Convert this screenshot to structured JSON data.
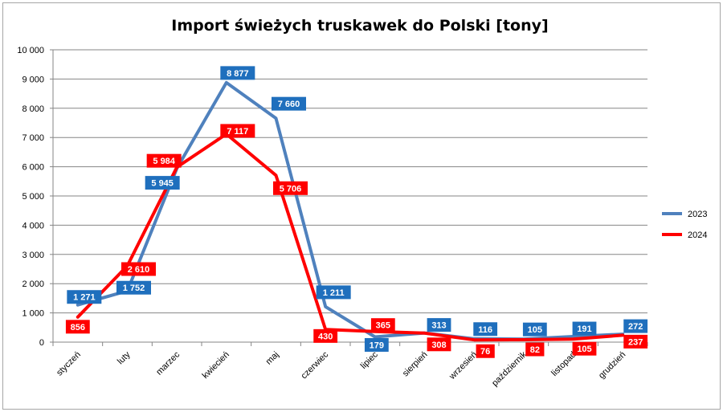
{
  "chart_data": {
    "type": "line",
    "title": "Import świeżych truskawek do Polski [tony]",
    "xlabel": "",
    "ylabel": "",
    "categories": [
      "styczeń",
      "luty",
      "marzec",
      "kwiecień",
      "maj",
      "czerwiec",
      "lipiec",
      "sierpień",
      "wrzesień",
      "październik",
      "listopad",
      "grudzień"
    ],
    "ylim": [
      0,
      10000
    ],
    "yticks": [
      0,
      1000,
      2000,
      3000,
      4000,
      5000,
      6000,
      7000,
      8000,
      9000,
      10000
    ],
    "ytick_labels": [
      "0",
      "1 000",
      "2 000",
      "3 000",
      "4 000",
      "5 000",
      "6 000",
      "7 000",
      "8 000",
      "9 000",
      "10 000"
    ],
    "grid": true,
    "legend_position": "right",
    "series": [
      {
        "name": "2023",
        "color": "#4f81bd",
        "label_bg": "#1f6fbd",
        "values": [
          1271,
          1752,
          5945,
          8877,
          7660,
          1211,
          179,
          313,
          116,
          105,
          191,
          272
        ],
        "labels": [
          "1 271",
          "1 752",
          "5 945",
          "8 877",
          "7 660",
          "1 211",
          "179",
          "313",
          "116",
          "105",
          "191",
          "272"
        ]
      },
      {
        "name": "2024",
        "color": "#ff0000",
        "label_bg": "#ff0000",
        "values": [
          856,
          2610,
          5984,
          7117,
          5706,
          430,
          365,
          308,
          76,
          82,
          105,
          237
        ],
        "labels": [
          "856",
          "2 610",
          "5 984",
          "7 117",
          "5 706",
          "430",
          "365",
          "308",
          "76",
          "82",
          "105",
          "237"
        ]
      }
    ]
  }
}
